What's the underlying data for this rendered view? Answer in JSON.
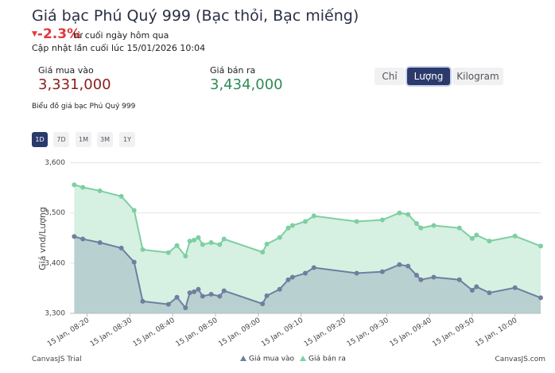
{
  "header": {
    "title": "Giá bạc Phú Quý 999 (Bạc thỏi, Bạc miếng)",
    "change": "-2.3%",
    "change_note": "từ cuối ngày hôm qua",
    "updated": "Cập nhật lần cuối lúc 15/01/2026 10:04"
  },
  "prices": {
    "buy_label": "Giá mua vào",
    "buy_value": "3,331,000",
    "sell_label": "Giá bán ra",
    "sell_value": "3,434,000"
  },
  "units": [
    "Chỉ",
    "Lượng",
    "Kilogram"
  ],
  "chart_heading": "Biểu đồ giá bạc Phú Quý 999",
  "ranges": [
    "1D",
    "7D",
    "1M",
    "3M",
    "1Y"
  ],
  "footer": {
    "left": "CanvasJS Trial",
    "right": "CanvasJS.com"
  },
  "chart_data": {
    "type": "area",
    "y_label": "Giá vnd/Lượng",
    "grid": true,
    "x": [
      "15 Jan, 08:17",
      "15 Jan, 08:19",
      "15 Jan, 08:23",
      "15 Jan, 08:28",
      "15 Jan, 08:31",
      "15 Jan, 08:33",
      "15 Jan, 08:39",
      "15 Jan, 08:41",
      "15 Jan, 08:43",
      "15 Jan, 08:44",
      "15 Jan, 08:45",
      "15 Jan, 08:46",
      "15 Jan, 08:47",
      "15 Jan, 08:49",
      "15 Jan, 08:51",
      "15 Jan, 08:52",
      "15 Jan, 09:01",
      "15 Jan, 09:02",
      "15 Jan, 09:05",
      "15 Jan, 09:07",
      "15 Jan, 09:08",
      "15 Jan, 09:11",
      "15 Jan, 09:13",
      "15 Jan, 09:23",
      "15 Jan, 09:29",
      "15 Jan, 09:33",
      "15 Jan, 09:35",
      "15 Jan, 09:37",
      "15 Jan, 09:38",
      "15 Jan, 09:41",
      "15 Jan, 09:47",
      "15 Jan, 09:50",
      "15 Jan, 09:51",
      "15 Jan, 09:54",
      "15 Jan, 10:00",
      "15 Jan, 10:06"
    ],
    "series": [
      {
        "name": "Giá bán ra",
        "color": "#7dcfa2",
        "fill": "#d6f0e2",
        "values": [
          3556,
          3551,
          3544,
          3533,
          3505,
          3427,
          3421,
          3435,
          3414,
          3444,
          3446,
          3451,
          3437,
          3441,
          3437,
          3448,
          3422,
          3438,
          3451,
          3470,
          3475,
          3483,
          3494,
          3483,
          3486,
          3500,
          3497,
          3479,
          3470,
          3475,
          3470,
          3449,
          3456,
          3444,
          3454,
          3434
        ]
      },
      {
        "name": "Giá mua vào",
        "color": "#6e7f9f",
        "fill": "#b9d0d1",
        "values": [
          3453,
          3448,
          3441,
          3430,
          3402,
          3324,
          3318,
          3332,
          3311,
          3341,
          3343,
          3348,
          3334,
          3338,
          3334,
          3345,
          3319,
          3335,
          3348,
          3367,
          3372,
          3380,
          3391,
          3380,
          3383,
          3397,
          3394,
          3376,
          3367,
          3372,
          3367,
          3346,
          3353,
          3341,
          3351,
          3331
        ]
      }
    ],
    "xlim": [
      "15 Jan, 08:16",
      "15 Jan, 10:06"
    ],
    "xticks": [
      "15 Jan, 08:20",
      "15 Jan, 08:30",
      "15 Jan, 08:40",
      "15 Jan, 08:50",
      "15 Jan, 09:00",
      "15 Jan, 09:10",
      "15 Jan, 09:20",
      "15 Jan, 09:30",
      "15 Jan, 09:40",
      "15 Jan, 09:50",
      "15 Jan, 10:00"
    ],
    "ylim": [
      3300,
      3612
    ],
    "yticks": [
      {
        "value": 3300,
        "label": "3,300"
      },
      {
        "value": 3400,
        "label": "3,400"
      },
      {
        "value": 3500,
        "label": "3,500"
      },
      {
        "value": 3600,
        "label": "3,600"
      }
    ]
  }
}
